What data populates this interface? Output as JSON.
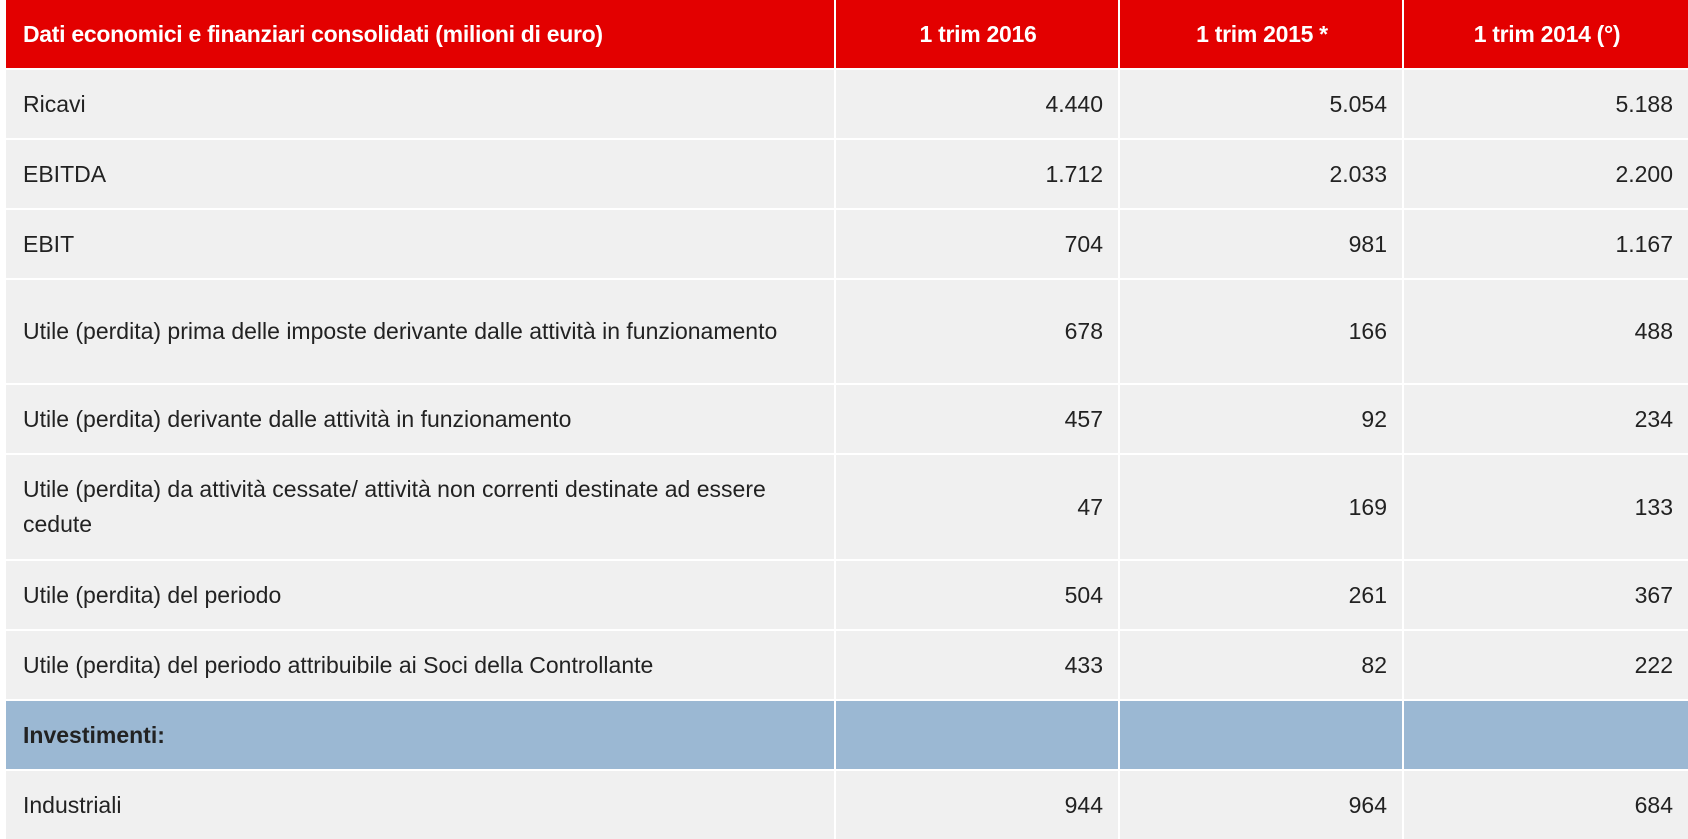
{
  "table": {
    "headers": [
      "Dati economici e finanziari consolidati (milioni di euro)",
      "1 trim 2016",
      "1 trim 2015 *",
      "1 trim 2014 (°)"
    ],
    "rows": [
      {
        "label": "Ricavi",
        "values": [
          "4.440",
          "5.054",
          "5.188"
        ]
      },
      {
        "label": "EBITDA",
        "values": [
          "1.712",
          "2.033",
          "2.200"
        ]
      },
      {
        "label": "EBIT",
        "values": [
          "704",
          "981",
          "1.167"
        ]
      },
      {
        "label": "Utile (perdita)  prima delle imposte derivante dalle attività in funzionamento",
        "values": [
          "678",
          "166",
          "488"
        ]
      },
      {
        "label": "Utile (perdita) derivante dalle attività in funzionamento",
        "values": [
          "457",
          "92",
          "234"
        ]
      },
      {
        "label": "Utile (perdita) da attività cessate/ attività non correnti destinate ad essere cedute",
        "values": [
          "47",
          "169",
          "133"
        ]
      },
      {
        "label": "Utile (perdita)  del periodo",
        "values": [
          "504",
          "261",
          "367"
        ]
      },
      {
        "label": "Utile (perdita) del periodo attribuibile ai Soci della Controllante",
        "values": [
          "433",
          "82",
          "222"
        ]
      },
      {
        "label": "Investimenti:",
        "values": [
          "",
          "",
          ""
        ]
      },
      {
        "label": "Industriali",
        "values": [
          "944",
          "964",
          "684"
        ]
      }
    ]
  },
  "colors": {
    "header_bg": "#e30000",
    "row_bg": "#f0f0f0",
    "section_bg": "#9bb8d3"
  }
}
